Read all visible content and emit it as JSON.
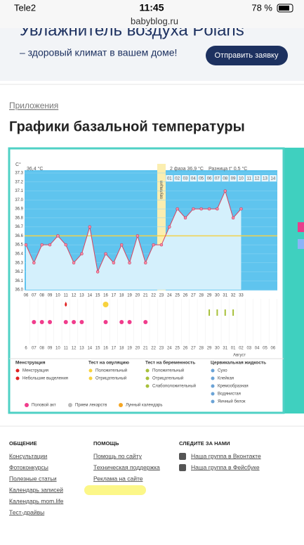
{
  "status_bar": {
    "carrier": "Tele2",
    "time": "11:45",
    "battery": "78 %",
    "url": "babyblog.ru"
  },
  "ad": {
    "headline": "Увлажнитель воздуха Polaris",
    "text": "– здоровый климат в вашем доме!",
    "button": "Отправить заявку"
  },
  "breadcrumb": "Приложения",
  "title": "Графики базальной температуры",
  "chart": {
    "type": "line",
    "unit": "C°",
    "phase1": "36,4 °C",
    "phase2": "2 фаза  36,9 °C",
    "difference": "Разница t° 0,5 °C",
    "ovulation_label": "овуляция",
    "x": [
      "06",
      "07",
      "08",
      "09",
      "10",
      "11",
      "12",
      "13",
      "14",
      "15",
      "16",
      "17",
      "18",
      "19",
      "20",
      "21",
      "22",
      "23",
      "24",
      "25",
      "26",
      "27",
      "28",
      "29",
      "30",
      "31",
      "32",
      "33"
    ],
    "values": [
      36.5,
      36.3,
      36.5,
      36.5,
      36.6,
      36.5,
      36.3,
      36.4,
      36.7,
      36.2,
      36.4,
      36.3,
      36.5,
      36.3,
      36.6,
      36.3,
      36.5,
      36.5,
      36.7,
      36.9,
      36.8,
      36.9,
      36.9,
      36.9,
      36.9,
      37.1,
      36.8,
      36.9
    ],
    "color": "#d9435f",
    "coverline": 36.6,
    "ylim": [
      36.0,
      37.3
    ],
    "yticks": [
      37.3,
      37.2,
      37.1,
      {
        "value": 37,
        "label": "37.0"
      },
      36.9,
      36.8,
      36.7,
      36.6,
      36.5,
      36.4,
      36.3,
      36.2,
      36.1,
      {
        "value": 36,
        "label": "36.0"
      }
    ],
    "post_ovulation_days": [
      "01",
      "02",
      "03",
      "04",
      "05",
      "06",
      "07",
      "08",
      "09",
      "10",
      "11",
      "12",
      "13",
      "14"
    ],
    "dates": [
      "6",
      "07",
      "08",
      "09",
      "10",
      "11",
      "12",
      "13",
      "14",
      "15",
      "16",
      "17",
      "18",
      "19",
      "20",
      "21",
      "22",
      "23",
      "24",
      "25",
      "26",
      "27",
      "28",
      "29",
      "30",
      "31",
      "01",
      "02",
      "03",
      "04",
      "05",
      "06"
    ],
    "month": "Август",
    "legend": {
      "menstruation": {
        "title": "Менструация",
        "items": [
          "Менструация",
          "Небольшие выделения"
        ]
      },
      "ovulation_test": {
        "title": "Тест на овуляцию",
        "items": [
          "Положительный",
          "Отрицательный"
        ]
      },
      "pregnancy_test": {
        "title": "Тест на беременность",
        "items": [
          "Положительный",
          "Отрицательный",
          "Слабоположительный"
        ]
      },
      "cervical_fluid": {
        "title": "Цервикальная жидкость",
        "items": [
          "Сухо",
          "Клейкая",
          "Кремообразная",
          "Водянистая",
          "Яичный белок"
        ]
      },
      "other": [
        "Половой акт",
        "Прием лекарств",
        "Лунный календарь"
      ]
    }
  },
  "footer": {
    "columns": [
      {
        "title": "ОБЩЕНИЕ",
        "links": [
          "Консультации",
          "Фотоконкурсы",
          "Полезные статьи",
          "Календарь записей",
          "Календарь mom.life",
          "Тест-драйвы"
        ]
      },
      {
        "title": "ПОМОЩЬ",
        "links": [
          "Помощь по сайту",
          "Техническая поддержка",
          "Реклама на сайте"
        ]
      },
      {
        "title": "СЛЕДИТЕ ЗА НАМИ",
        "links": [
          "Наша группа в Вконтакте",
          "Наша группа в Фейсбуке"
        ]
      }
    ]
  }
}
